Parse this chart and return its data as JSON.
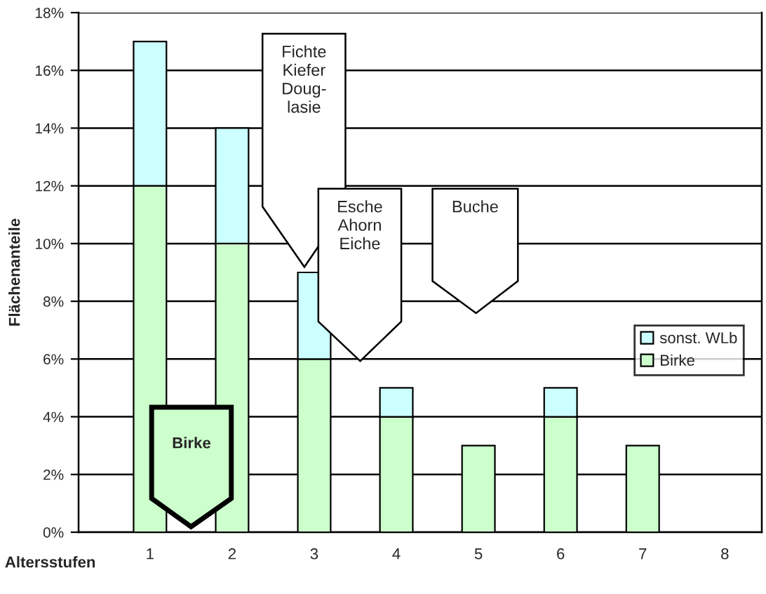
{
  "chart_data": {
    "type": "bar",
    "stacked": true,
    "ylabel": "Flächenanteile",
    "xlabel": "Altersstufen",
    "categories": [
      "1",
      "2",
      "3",
      "4",
      "5",
      "6",
      "7",
      "8"
    ],
    "series": [
      {
        "name": "Birke",
        "color": "#ccffcc",
        "values": [
          12,
          10,
          6,
          4,
          3,
          4,
          3,
          null
        ]
      },
      {
        "name": "sonst. WLb",
        "color": "#ccffff",
        "values": [
          5,
          4,
          3,
          1,
          null,
          1,
          null,
          null
        ]
      }
    ],
    "ylim": [
      0,
      18
    ],
    "yticks": [
      {
        "value": 0,
        "label": "0%"
      },
      {
        "value": 2,
        "label": "2%"
      },
      {
        "value": 4,
        "label": "4%"
      },
      {
        "value": 6,
        "label": "6%"
      },
      {
        "value": 8,
        "label": "8%"
      },
      {
        "value": 10,
        "label": "10%"
      },
      {
        "value": 12,
        "label": "12%"
      },
      {
        "value": 14,
        "label": "14%"
      },
      {
        "value": 16,
        "label": "16%"
      },
      {
        "value": 18,
        "label": "18%"
      }
    ],
    "grid": "y",
    "legend": "right",
    "annotations": [
      "Fichte\nKiefer\nDoug-\nlasie",
      "Esche\nAhorn\nEiche",
      "Buche",
      "Birke"
    ]
  }
}
